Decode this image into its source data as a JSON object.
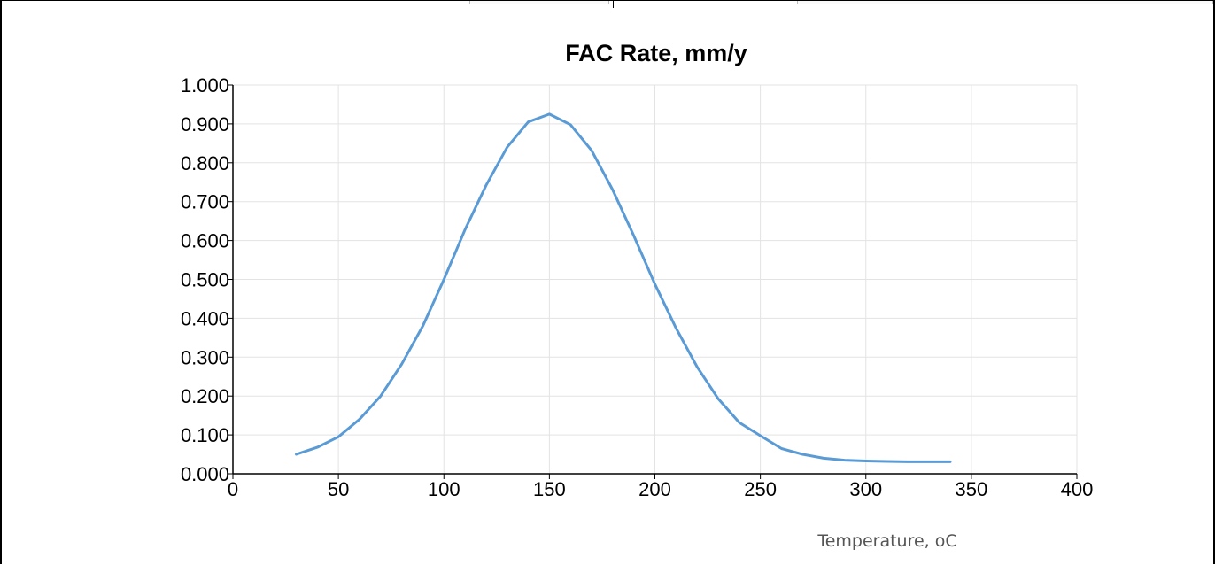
{
  "chart_data": {
    "type": "line",
    "title": "FAC Rate, mm/y",
    "xlabel": "Temperature, oC",
    "ylabel": "",
    "xlim": [
      0,
      400
    ],
    "ylim": [
      0,
      1
    ],
    "xticks": [
      "0",
      "50",
      "100",
      "150",
      "200",
      "250",
      "300",
      "350",
      "400"
    ],
    "yticks": [
      "0.000",
      "0.100",
      "0.200",
      "0.300",
      "0.400",
      "0.500",
      "0.600",
      "0.700",
      "0.800",
      "0.900",
      "1.000"
    ],
    "grid": true,
    "legend": "none",
    "series": [
      {
        "color": "#5b9bd5",
        "x": [
          30,
          40,
          50,
          60,
          70,
          80,
          90,
          100,
          110,
          120,
          130,
          140,
          150,
          160,
          170,
          180,
          190,
          200,
          210,
          220,
          230,
          240,
          250,
          260,
          270,
          280,
          290,
          300,
          310,
          320,
          330,
          340
        ],
        "y": [
          0.05,
          0.068,
          0.095,
          0.14,
          0.2,
          0.282,
          0.38,
          0.5,
          0.628,
          0.742,
          0.84,
          0.905,
          0.925,
          0.898,
          0.832,
          0.73,
          0.612,
          0.488,
          0.375,
          0.275,
          0.193,
          0.132,
          0.098,
          0.065,
          0.05,
          0.04,
          0.035,
          0.033,
          0.032,
          0.031,
          0.031,
          0.031
        ]
      }
    ]
  }
}
